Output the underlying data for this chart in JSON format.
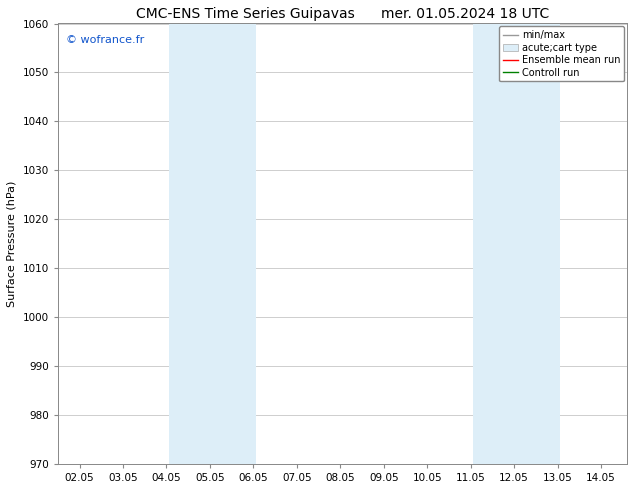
{
  "title_left": "CMC-ENS Time Series Guipavas",
  "title_right": "mer. 01.05.2024 18 UTC",
  "ylabel": "Surface Pressure (hPa)",
  "xlim": [
    1.5,
    14.6
  ],
  "ylim": [
    970,
    1060
  ],
  "yticks": [
    970,
    980,
    990,
    1000,
    1010,
    1020,
    1030,
    1040,
    1050,
    1060
  ],
  "xtick_labels": [
    "02.05",
    "03.05",
    "04.05",
    "05.05",
    "06.05",
    "07.05",
    "08.05",
    "09.05",
    "10.05",
    "11.05",
    "12.05",
    "13.05",
    "14.05"
  ],
  "xtick_positions": [
    2,
    3,
    4,
    5,
    6,
    7,
    8,
    9,
    10,
    11,
    12,
    13,
    14
  ],
  "shaded_regions": [
    {
      "xmin": 4.05,
      "xmax": 6.05,
      "color": "#ddeef8"
    },
    {
      "xmin": 11.05,
      "xmax": 13.05,
      "color": "#ddeef8"
    }
  ],
  "watermark_text": "© wofrance.fr",
  "watermark_color": "#1155cc",
  "background_color": "#ffffff",
  "grid_color": "#bbbbbb",
  "title_fontsize": 10,
  "axis_fontsize": 8,
  "tick_fontsize": 7.5
}
